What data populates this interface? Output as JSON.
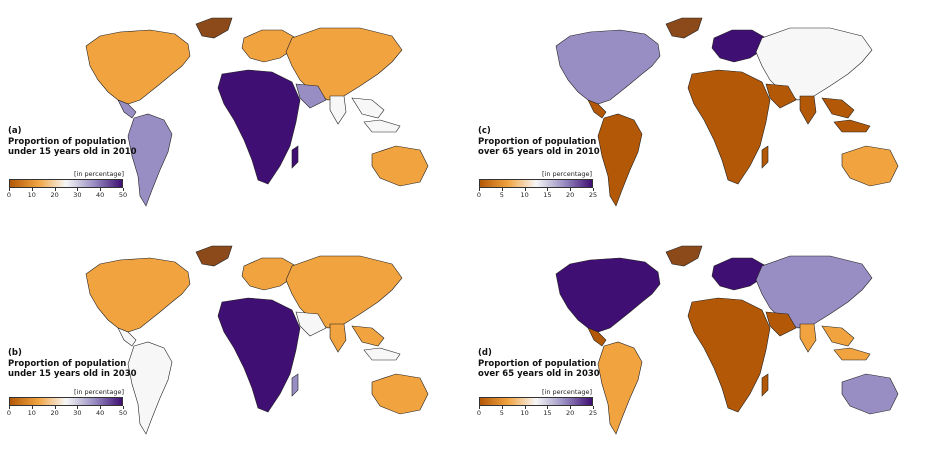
{
  "panels": [
    {
      "id": "a",
      "letter": "(a)",
      "title_line1": "Proportion of population",
      "title_line2": "under 15 years old in 2010",
      "unit": "[in percentage]",
      "ticks": [
        "0",
        "10",
        "20",
        "30",
        "40",
        "50"
      ],
      "scheme": "young",
      "year": 2010
    },
    {
      "id": "c",
      "letter": "(c)",
      "title_line1": "Proportion of population",
      "title_line2": "over 65 years old in 2010",
      "unit": "[in percentage]",
      "ticks": [
        "0",
        "5",
        "10",
        "15",
        "20",
        "25"
      ],
      "scheme": "old",
      "year": 2010
    },
    {
      "id": "b",
      "letter": "(b)",
      "title_line1": "Proportion of population",
      "title_line2": "under 15 years old in 2030",
      "unit": "[in percentage]",
      "ticks": [
        "0",
        "10",
        "20",
        "30",
        "40",
        "50"
      ],
      "scheme": "young",
      "year": 2030
    },
    {
      "id": "d",
      "letter": "(d)",
      "title_line1": "Proportion of population",
      "title_line2": "over 65 years old in 2030",
      "unit": "[in percentage]",
      "ticks": [
        "0",
        "5",
        "10",
        "15",
        "20",
        "25"
      ],
      "scheme": "old",
      "year": 2030
    }
  ],
  "colors": {
    "low": "#b35806",
    "midlow": "#f1a340",
    "mid": "#f7f7f7",
    "midhigh": "#998ec3",
    "high": "#3f0f73",
    "greenland": "#8c4a1a",
    "border": "#222222"
  }
}
